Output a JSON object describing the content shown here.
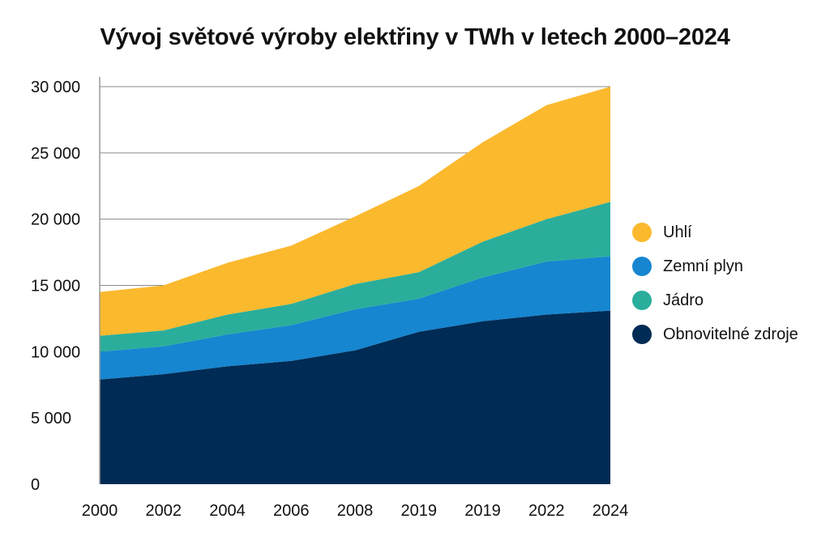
{
  "chart_data": {
    "type": "area",
    "stacked": true,
    "title": "Vývoj světové výroby elektřiny v TWh v letech 2000–2024",
    "xlabel": "",
    "ylabel": "",
    "categories": [
      "2000",
      "2002",
      "2004",
      "2006",
      "2008",
      "2019",
      "2019",
      "2022",
      "2024"
    ],
    "ylim": [
      0,
      30000
    ],
    "yticks": [
      0,
      5000,
      10000,
      15000,
      20000,
      25000,
      30000
    ],
    "ytick_labels": [
      "0",
      "5 000",
      "10 000",
      "15 000",
      "20 000",
      "25 000",
      "30 000"
    ],
    "grid": "horizontal",
    "legend_position": "right",
    "series": [
      {
        "name": "Obnovitelné zdroje",
        "color": "#002B55",
        "values": [
          7900,
          8300,
          8900,
          9300,
          10100,
          11500,
          12300,
          12800,
          13100
        ]
      },
      {
        "name": "Zemní plyn",
        "color": "#1686D0",
        "values": [
          2100,
          2100,
          2400,
          2700,
          3100,
          2500,
          3300,
          4000,
          4100
        ]
      },
      {
        "name": "Jádro",
        "color": "#2AAE9B",
        "values": [
          1200,
          1200,
          1500,
          1600,
          1900,
          2000,
          2700,
          3200,
          4100
        ]
      },
      {
        "name": "Uhlí",
        "color": "#FBB92E",
        "values": [
          3300,
          3400,
          3900,
          4400,
          5100,
          6500,
          7500,
          8600,
          8700
        ]
      }
    ],
    "legend_order": [
      "Uhlí",
      "Zemní plyn",
      "Jádro",
      "Obnovitelné zdroje"
    ]
  }
}
